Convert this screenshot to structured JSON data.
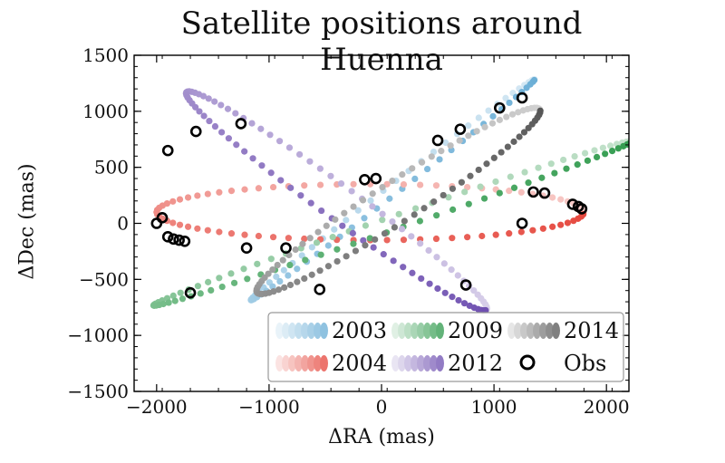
{
  "chart_data": {
    "type": "scatter",
    "title": "Satellite positions around Huenna",
    "xlabel": "ΔRA (mas)",
    "ylabel": "ΔDec (mas)",
    "xlim": [
      -2200,
      2200
    ],
    "ylim": [
      -1500,
      1500
    ],
    "x_ticks": [
      -2000,
      -1000,
      0,
      1000,
      2000
    ],
    "y_ticks": [
      -1500,
      -1000,
      -500,
      0,
      500,
      1000,
      1500
    ],
    "x_tick_labels": [
      "−2000",
      "−1000",
      "0",
      "1000",
      "2000"
    ],
    "y_tick_labels": [
      "−1500",
      "−1000",
      "−500",
      "0",
      "500",
      "1000",
      "1500"
    ],
    "grid": false,
    "legend_position": "bottom-right",
    "series": [
      {
        "name": "2003",
        "kind": "orbit",
        "color": "#6aaed6",
        "cx": 100,
        "cy": 300,
        "a": 1600,
        "b": 45,
        "angle_deg": 38,
        "t_start": 0,
        "t_end": 360,
        "n": 70
      },
      {
        "name": "2004",
        "kind": "orbit",
        "color": "#e5463c",
        "cx": -100,
        "cy": 100,
        "a": 1900,
        "b": 250,
        "angle_deg": 0,
        "t_start": 0,
        "t_end": 360,
        "n": 80
      },
      {
        "name": "2009",
        "kind": "orbit",
        "color": "#2f9a4c",
        "cx": 100,
        "cy": 0,
        "a": 2250,
        "b": 60,
        "angle_deg": 19,
        "t_start": 0,
        "t_end": 360,
        "n": 90
      },
      {
        "name": "2012",
        "kind": "orbit",
        "color": "#6e4fb0",
        "cx": -400,
        "cy": 200,
        "a": 1650,
        "b": 150,
        "angle_deg": -36,
        "t_start": 0,
        "t_end": 360,
        "n": 90
      },
      {
        "name": "2014",
        "kind": "orbit",
        "color": "#555555",
        "cx": 150,
        "cy": 200,
        "a": 1500,
        "b": 180,
        "angle_deg": 33,
        "t_start": 0,
        "t_end": 360,
        "n": 90
      },
      {
        "name": "Obs",
        "kind": "observations",
        "x": [
          -2000,
          -1950,
          -1900,
          -1850,
          -1800,
          -1750,
          -1900,
          -1650,
          -1250,
          -1200,
          -850,
          -1700,
          -550,
          -150,
          -50,
          500,
          700,
          750,
          1050,
          1250,
          1350,
          1450,
          1250,
          1700,
          1750,
          1780
        ],
        "y": [
          0,
          50,
          -120,
          -140,
          -150,
          -160,
          650,
          820,
          890,
          -220,
          -220,
          -620,
          -590,
          390,
          400,
          740,
          840,
          -550,
          1030,
          1120,
          280,
          270,
          0,
          170,
          150,
          130
        ]
      }
    ],
    "legend": [
      {
        "label": "2003",
        "color": "#6aaed6"
      },
      {
        "label": "2009",
        "color": "#2f9a4c"
      },
      {
        "label": "2014",
        "color": "#555555"
      },
      {
        "label": "2004",
        "color": "#e5463c"
      },
      {
        "label": "2012",
        "color": "#6e4fb0"
      },
      {
        "label": "Obs",
        "color": "#000000"
      }
    ]
  }
}
